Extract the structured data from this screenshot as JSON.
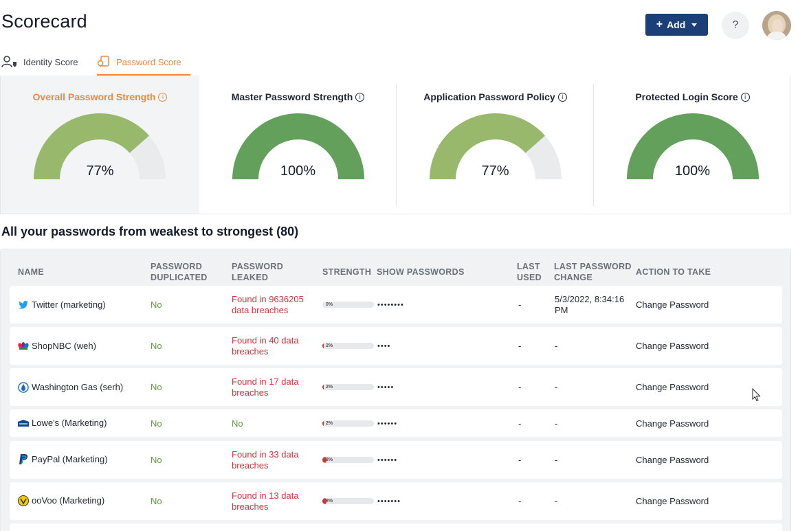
{
  "header": {
    "title": "Scorecard",
    "add_label": "Add",
    "help_label": "?"
  },
  "tabs": [
    {
      "label": "Identity Score",
      "active": false
    },
    {
      "label": "Password Score",
      "active": true
    }
  ],
  "scores": [
    {
      "title": "Overall Password Strength",
      "value": "77%",
      "percent": 77,
      "color": "#98b96b"
    },
    {
      "title": "Master Password Strength",
      "value": "100%",
      "percent": 100,
      "color": "#63a05c"
    },
    {
      "title": "Application Password Policy",
      "value": "77%",
      "percent": 77,
      "color": "#98b96b"
    },
    {
      "title": "Protected Login Score",
      "value": "100%",
      "percent": 100,
      "color": "#63a05c"
    }
  ],
  "list": {
    "heading": "All your passwords from weakest to strongest (80)",
    "columns": {
      "name": "NAME",
      "dup_1": "PASSWORD",
      "dup_2": "DUPLICATED",
      "leak_1": "PASSWORD",
      "leak_2": "LEAKED",
      "strength": "STRENGTH",
      "show": "SHOW PASSWORDS",
      "used_1": "LAST",
      "used_2": "USED",
      "change_1": "LAST PASSWORD",
      "change_2": "CHANGE",
      "action": "ACTION TO TAKE"
    },
    "rows": [
      {
        "name": "Twitter (marketing)",
        "icon": "twitter-icon",
        "duplicated": "No",
        "leaked": "Found in 9636205 data breaches",
        "strength_label": "0%",
        "strength": 0,
        "password": "••••••••",
        "last_used": "-",
        "last_change": "5/3/2022, 8:34:16 PM",
        "action": "Change Password"
      },
      {
        "name": "ShopNBC (weh)",
        "icon": "shopnbc-icon",
        "duplicated": "No",
        "leaked": "Found in 40 data breaches",
        "strength_label": "2%",
        "strength": 2,
        "password": "••••",
        "last_used": "-",
        "last_change": "-",
        "action": "Change Password"
      },
      {
        "name": "Washington Gas (serh)",
        "icon": "washington-gas-icon",
        "duplicated": "No",
        "leaked": "Found in 17 data breaches",
        "strength_label": "2%",
        "strength": 2,
        "password": "•••••",
        "last_used": "-",
        "last_change": "-",
        "action": "Change Password"
      },
      {
        "name": "Lowe's (Marketing)",
        "icon": "lowes-icon",
        "duplicated": "No",
        "leaked": "No",
        "strength_label": "2%",
        "strength": 2,
        "password": "••••••",
        "last_used": "-",
        "last_change": "-",
        "action": "Change Password"
      },
      {
        "name": "PayPal (Marketing)",
        "icon": "paypal-icon",
        "duplicated": "No",
        "leaked": "Found in 33 data breaches",
        "strength_label": "8%",
        "strength": 8,
        "password": "••••••",
        "last_used": "-",
        "last_change": "-",
        "action": "Change Password"
      },
      {
        "name": "ooVoo (Marketing)",
        "icon": "oovoo-icon",
        "duplicated": "No",
        "leaked": "Found in 13 data breaches",
        "strength_label": "8%",
        "strength": 8,
        "password": "•••••••",
        "last_used": "-",
        "last_change": "-",
        "action": "Change Password"
      }
    ]
  }
}
